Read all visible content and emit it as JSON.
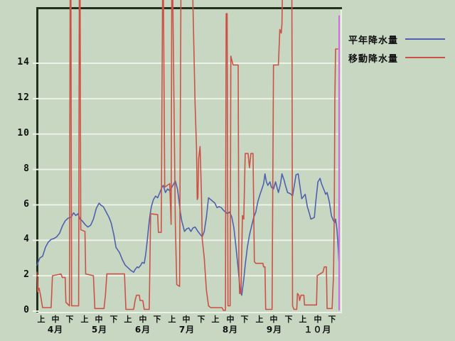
{
  "ui": {
    "legend": {
      "items": [
        {
          "label": "平年降水量",
          "color": "#4f61ae"
        },
        {
          "label": "移動降水量",
          "color": "#cd5246"
        }
      ]
    },
    "colors": {
      "background": "#c7d7c2",
      "frame_dark": "#24301f",
      "gridline": "#edf2e8",
      "cursor": "#d26ce0",
      "text": "#101010"
    }
  },
  "chart_data": {
    "type": "line",
    "title": "",
    "xlabel": "",
    "ylabel": "",
    "x_unit": "t = days since April 1 (axis shows ten-day periods 上/中/下 for each month)",
    "ylim": [
      0,
      17.1
    ],
    "off_scale_value": 19,
    "grid": "horizontal white lines at even values 2-14; sunken bevel frame (dark top/left, light bottom/right)",
    "legend_position": "top-right",
    "y_ticks": [
      "0",
      "2",
      "4",
      "6",
      "8",
      "10",
      "12",
      "14"
    ],
    "y_grid_values": [
      2,
      4,
      6,
      8,
      10,
      12,
      14
    ],
    "y_stub_values": [
      0,
      2,
      4,
      6,
      8,
      10,
      12,
      14
    ],
    "x_period_labels": [
      "上",
      "中",
      "下",
      "上",
      "中",
      "下",
      "上",
      "中",
      "下",
      "上",
      "中",
      "下",
      "上",
      "中",
      "下",
      "上",
      "中",
      "下",
      "上",
      "中",
      "下"
    ],
    "x_month_labels": [
      "4月",
      "5月",
      "6月",
      "7月",
      "8月",
      "9月",
      "１０月"
    ],
    "series": [
      {
        "name": "平年降水量",
        "color": "#4f61ae",
        "points": [
          [
            0,
            2.6
          ],
          [
            2,
            3.0
          ],
          [
            4,
            3.1
          ],
          [
            6,
            3.6
          ],
          [
            8,
            3.9
          ],
          [
            10,
            4.05
          ],
          [
            12,
            4.1
          ],
          [
            14,
            4.2
          ],
          [
            16,
            4.4
          ],
          [
            18,
            4.8
          ],
          [
            20,
            5.1
          ],
          [
            22,
            5.25
          ],
          [
            24,
            5.3
          ],
          [
            26,
            5.55
          ],
          [
            27.5,
            5.4
          ],
          [
            29,
            5.5
          ],
          [
            30.5,
            5.2
          ],
          [
            32,
            5.1
          ],
          [
            34,
            4.9
          ],
          [
            36,
            4.75
          ],
          [
            38,
            4.85
          ],
          [
            40,
            5.2
          ],
          [
            42,
            5.8
          ],
          [
            44,
            6.1
          ],
          [
            45,
            6.0
          ],
          [
            47,
            5.9
          ],
          [
            49,
            5.6
          ],
          [
            51,
            5.3
          ],
          [
            52.5,
            5.0
          ],
          [
            54.5,
            4.3
          ],
          [
            56,
            3.6
          ],
          [
            58.5,
            3.3
          ],
          [
            60.5,
            2.9
          ],
          [
            62.5,
            2.6
          ],
          [
            64.5,
            2.45
          ],
          [
            66.5,
            2.3
          ],
          [
            68.5,
            2.2
          ],
          [
            69.5,
            2.35
          ],
          [
            71,
            2.5
          ],
          [
            72,
            2.45
          ],
          [
            73.5,
            2.6
          ],
          [
            74.5,
            2.75
          ],
          [
            76,
            2.7
          ],
          [
            77,
            3.2
          ],
          [
            78,
            3.9
          ],
          [
            79,
            4.7
          ],
          [
            80,
            5.4
          ],
          [
            81,
            5.9
          ],
          [
            82.5,
            6.3
          ],
          [
            84,
            6.5
          ],
          [
            85.5,
            6.4
          ],
          [
            87,
            6.7
          ],
          [
            88.5,
            7.0
          ],
          [
            89.5,
            7.1
          ],
          [
            91,
            6.7
          ],
          [
            92.5,
            6.9
          ],
          [
            94,
            6.8
          ],
          [
            95.5,
            7.0
          ],
          [
            97,
            7.2
          ],
          [
            98,
            7.35
          ],
          [
            99.5,
            6.9
          ],
          [
            100.5,
            6.3
          ],
          [
            101.5,
            5.6
          ],
          [
            102.5,
            5.1
          ],
          [
            103.5,
            4.8
          ],
          [
            104.5,
            4.5
          ],
          [
            106,
            4.65
          ],
          [
            107.5,
            4.7
          ],
          [
            109,
            4.5
          ],
          [
            110.5,
            4.7
          ],
          [
            112,
            4.75
          ],
          [
            114,
            4.5
          ],
          [
            115.5,
            4.35
          ],
          [
            117,
            4.2
          ],
          [
            118.5,
            4.5
          ],
          [
            120,
            5.3
          ],
          [
            121.5,
            6.4
          ],
          [
            123,
            6.3
          ],
          [
            124.5,
            6.2
          ],
          [
            126,
            6.1
          ],
          [
            127.5,
            5.85
          ],
          [
            129,
            5.9
          ],
          [
            130.5,
            5.85
          ],
          [
            132,
            5.7
          ],
          [
            133.5,
            5.6
          ],
          [
            135,
            5.5
          ],
          [
            136.5,
            5.6
          ],
          [
            138,
            5.3
          ],
          [
            139.5,
            4.7
          ],
          [
            141,
            3.6
          ],
          [
            142.5,
            2.4
          ],
          [
            144,
            1.1
          ],
          [
            145,
            0.9
          ],
          [
            146.5,
            1.8
          ],
          [
            147.5,
            2.6
          ],
          [
            149,
            3.6
          ],
          [
            150.5,
            4.3
          ],
          [
            152,
            4.8
          ],
          [
            153.5,
            5.3
          ],
          [
            155,
            5.6
          ],
          [
            156.5,
            6.2
          ],
          [
            158,
            6.6
          ],
          [
            159.5,
            6.95
          ],
          [
            160.5,
            7.2
          ],
          [
            161.5,
            7.75
          ],
          [
            162.5,
            7.3
          ],
          [
            163.5,
            7.1
          ],
          [
            165,
            7.3
          ],
          [
            166,
            7.0
          ],
          [
            167.5,
            6.9
          ],
          [
            169,
            7.3
          ],
          [
            170,
            7.0
          ],
          [
            171,
            6.7
          ],
          [
            172.5,
            7.2
          ],
          [
            173.5,
            7.75
          ],
          [
            175,
            7.4
          ],
          [
            176,
            7.1
          ],
          [
            177.5,
            6.7
          ],
          [
            179,
            6.65
          ],
          [
            180,
            6.6
          ],
          [
            181,
            6.5
          ],
          [
            182.5,
            7.2
          ],
          [
            183.5,
            7.7
          ],
          [
            185,
            7.75
          ],
          [
            186,
            7.2
          ],
          [
            187.5,
            6.35
          ],
          [
            189,
            6.5
          ],
          [
            190,
            6.6
          ],
          [
            191.5,
            5.9
          ],
          [
            193,
            5.5
          ],
          [
            194,
            5.2
          ],
          [
            195.5,
            5.25
          ],
          [
            196.5,
            5.3
          ],
          [
            197.5,
            6.2
          ],
          [
            199,
            7.3
          ],
          [
            200.5,
            7.5
          ],
          [
            201.5,
            7.2
          ],
          [
            203.5,
            6.8
          ],
          [
            204.5,
            6.6
          ],
          [
            205.5,
            6.7
          ],
          [
            207,
            6.2
          ],
          [
            208.5,
            5.4
          ],
          [
            210,
            5.1
          ],
          [
            211,
            5.0
          ],
          [
            211.5,
            5.2
          ],
          [
            212.5,
            4.6
          ],
          [
            213.5,
            3.4
          ],
          [
            214,
            2.6
          ]
        ]
      },
      {
        "name": "移動降水量",
        "color": "#cd5246",
        "note": "value 19 represents an off-scale spike drawn to the top edge of the image",
        "points": [
          [
            0,
            2.2
          ],
          [
            0.5,
            1.1
          ],
          [
            1.5,
            1.3
          ],
          [
            2.5,
            0.9
          ],
          [
            4,
            0.2
          ],
          [
            10,
            0.2
          ],
          [
            11,
            2.0
          ],
          [
            17,
            2.1
          ],
          [
            18,
            1.9
          ],
          [
            20,
            1.9
          ],
          [
            20.5,
            0.5
          ],
          [
            23,
            0.3
          ],
          [
            23.5,
            19
          ],
          [
            24,
            19
          ],
          [
            24.5,
            0.3
          ],
          [
            29.5,
            0.3
          ],
          [
            30,
            19
          ],
          [
            30.5,
            19
          ],
          [
            31,
            4.6
          ],
          [
            34,
            4.5
          ],
          [
            34.5,
            2.1
          ],
          [
            40,
            2.0
          ],
          [
            41,
            0.15
          ],
          [
            47.5,
            0.15
          ],
          [
            48.5,
            0.9
          ],
          [
            49.5,
            2.1
          ],
          [
            62,
            2.1
          ],
          [
            63,
            0.1
          ],
          [
            68.5,
            0.1
          ],
          [
            69.5,
            0.6
          ],
          [
            70.5,
            0.9
          ],
          [
            72.5,
            0.9
          ],
          [
            73,
            0.6
          ],
          [
            75,
            0.6
          ],
          [
            76,
            0.1
          ],
          [
            79.5,
            0.1
          ],
          [
            80.5,
            5.5
          ],
          [
            85.5,
            5.45
          ],
          [
            86,
            4.45
          ],
          [
            88,
            4.45
          ],
          [
            89,
            19
          ],
          [
            89.5,
            19
          ],
          [
            90.5,
            7.0
          ],
          [
            94,
            7.2
          ],
          [
            95,
            4.9
          ],
          [
            95.5,
            19
          ],
          [
            96,
            19
          ],
          [
            98,
            5.0
          ],
          [
            99,
            1.5
          ],
          [
            101,
            1.4
          ],
          [
            102,
            19
          ],
          [
            103,
            19
          ],
          [
            110,
            19
          ],
          [
            112,
            11.7
          ],
          [
            113,
            9.2
          ],
          [
            113.5,
            6.3
          ],
          [
            114,
            6.4
          ],
          [
            114.5,
            8.6
          ],
          [
            115.5,
            9.3
          ],
          [
            116.5,
            6.5
          ],
          [
            117,
            4.1
          ],
          [
            118.5,
            3.0
          ],
          [
            120,
            1.2
          ],
          [
            121.5,
            0.3
          ],
          [
            123,
            0.2
          ],
          [
            131,
            0.2
          ],
          [
            132,
            0.05
          ],
          [
            133.5,
            0.05
          ],
          [
            134,
            16.8
          ],
          [
            134.7,
            16.8
          ],
          [
            135.3,
            0.3
          ],
          [
            136.8,
            0.3
          ],
          [
            137.3,
            14.4
          ],
          [
            138.5,
            14.0
          ],
          [
            139,
            13.9
          ],
          [
            142.5,
            13.9
          ],
          [
            143,
            2.5
          ],
          [
            143.5,
            1.0
          ],
          [
            144.5,
            1.0
          ],
          [
            145.5,
            5.4
          ],
          [
            146.5,
            5.2
          ],
          [
            147.5,
            8.9
          ],
          [
            149.5,
            8.9
          ],
          [
            150.5,
            8.1
          ],
          [
            151.5,
            8.9
          ],
          [
            153,
            8.9
          ],
          [
            154,
            2.8
          ],
          [
            155,
            2.7
          ],
          [
            160,
            2.7
          ],
          [
            160.5,
            2.5
          ],
          [
            161.5,
            2.5
          ],
          [
            162,
            0.1
          ],
          [
            166.5,
            0.1
          ],
          [
            167.5,
            13.9
          ],
          [
            171,
            13.9
          ],
          [
            172,
            15.9
          ],
          [
            173,
            15.7
          ],
          [
            173.5,
            16.2
          ],
          [
            174,
            19
          ],
          [
            180.5,
            19
          ],
          [
            181,
            0.3
          ],
          [
            182,
            0.1
          ],
          [
            184,
            0.1
          ],
          [
            184.5,
            1.0
          ],
          [
            185.5,
            0.9
          ],
          [
            186,
            0.6
          ],
          [
            187,
            0.9
          ],
          [
            189,
            0.9
          ],
          [
            189.5,
            0.35
          ],
          [
            198,
            0.35
          ],
          [
            198.5,
            2.0
          ],
          [
            200.5,
            2.1
          ],
          [
            202.5,
            2.2
          ],
          [
            203.5,
            2.5
          ],
          [
            205,
            2.5
          ],
          [
            205.5,
            0.15
          ],
          [
            209,
            0.15
          ],
          [
            210,
            2.0
          ],
          [
            210.5,
            5.0
          ],
          [
            211,
            12.0
          ],
          [
            211.5,
            14.8
          ],
          [
            213,
            14.8
          ]
        ]
      }
    ],
    "cursor_line": {
      "t": 214,
      "v_from": 0.05,
      "v_to": 16.7,
      "color": "#d26ce0"
    }
  }
}
